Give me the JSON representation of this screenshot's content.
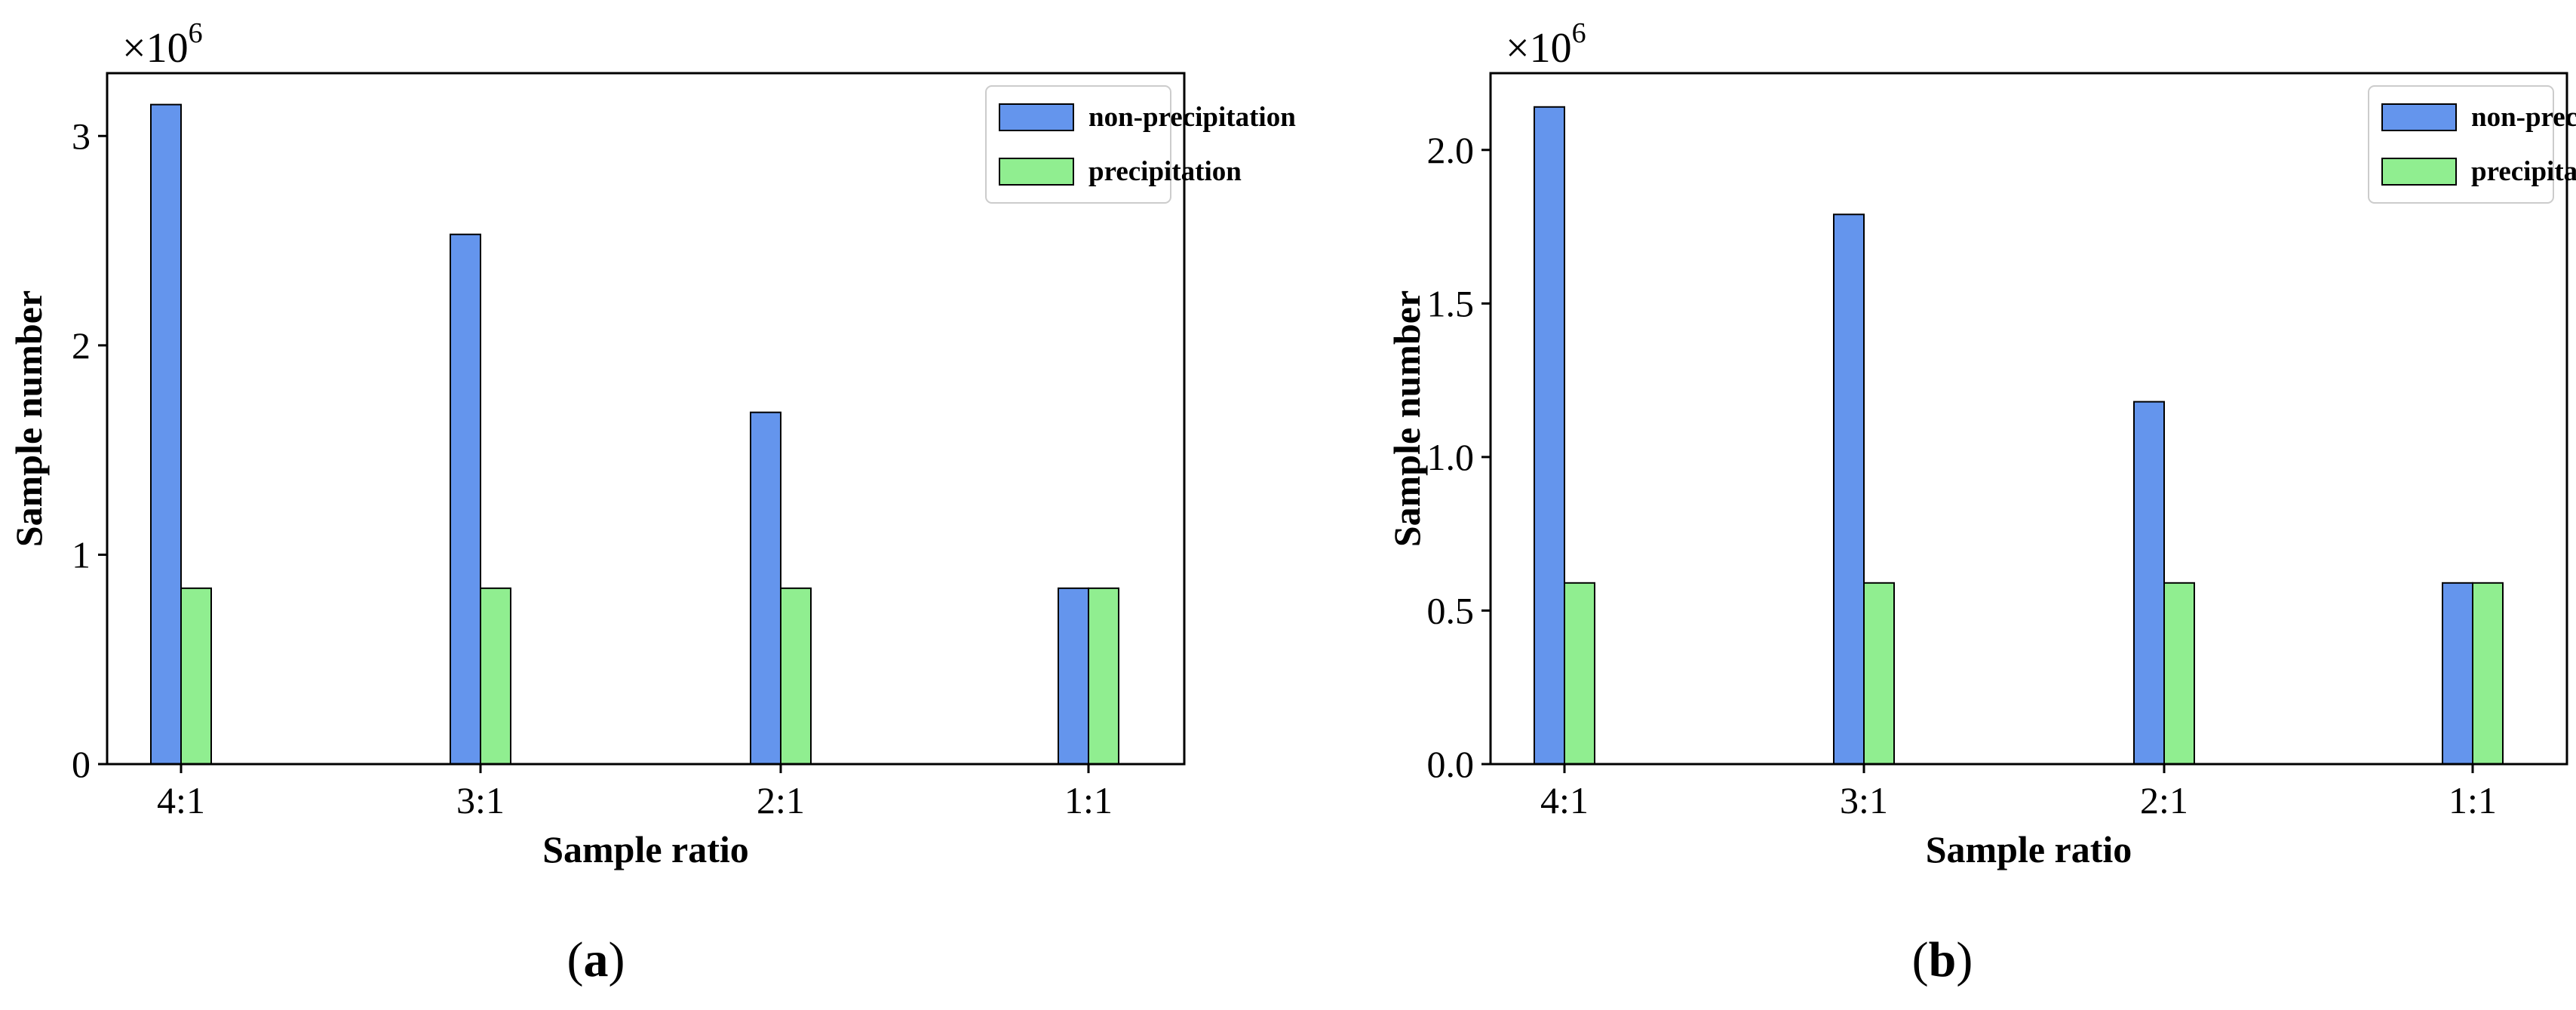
{
  "chart_data": [
    {
      "type": "bar",
      "panel": "(a)",
      "categories": [
        "4:1",
        "3:1",
        "2:1",
        "1:1"
      ],
      "series": [
        {
          "name": "non-precipitation",
          "color": "#6495ED",
          "values": [
            3.15,
            2.53,
            1.68,
            0.84
          ]
        },
        {
          "name": "precipitation",
          "color": "#90EE90",
          "values": [
            0.84,
            0.84,
            0.84,
            0.84
          ]
        }
      ],
      "xlabel": "Sample ratio",
      "ylabel": "Sample number",
      "ylim": [
        0,
        3.3
      ],
      "yticks": [
        0,
        1,
        2,
        3
      ],
      "ytick_labels": [
        "0",
        "1",
        "2",
        "3"
      ],
      "multiplier": "×10",
      "multiplier_exp": "6",
      "legend_position": "top-right",
      "grid": false
    },
    {
      "type": "bar",
      "panel": "(b)",
      "categories": [
        "4:1",
        "3:1",
        "2:1",
        "1:1"
      ],
      "series": [
        {
          "name": "non-precipitation",
          "color": "#6495ED",
          "values": [
            2.14,
            1.79,
            1.18,
            0.59
          ]
        },
        {
          "name": "precipitation",
          "color": "#90EE90",
          "values": [
            0.59,
            0.59,
            0.59,
            0.59
          ]
        }
      ],
      "xlabel": "Sample ratio",
      "ylabel": "Sample number",
      "ylim": [
        0,
        2.25
      ],
      "yticks": [
        0,
        0.5,
        1.0,
        1.5,
        2.0
      ],
      "ytick_labels": [
        "0.0",
        "0.5",
        "1.0",
        "1.5",
        "2.0"
      ],
      "multiplier": "×10",
      "multiplier_exp": "6",
      "legend_position": "top-right",
      "grid": false
    }
  ],
  "captions": {
    "a_open": "(",
    "a_letter": "a",
    "a_close": ")",
    "b_open": "(",
    "b_letter": "b",
    "b_close": ")"
  }
}
